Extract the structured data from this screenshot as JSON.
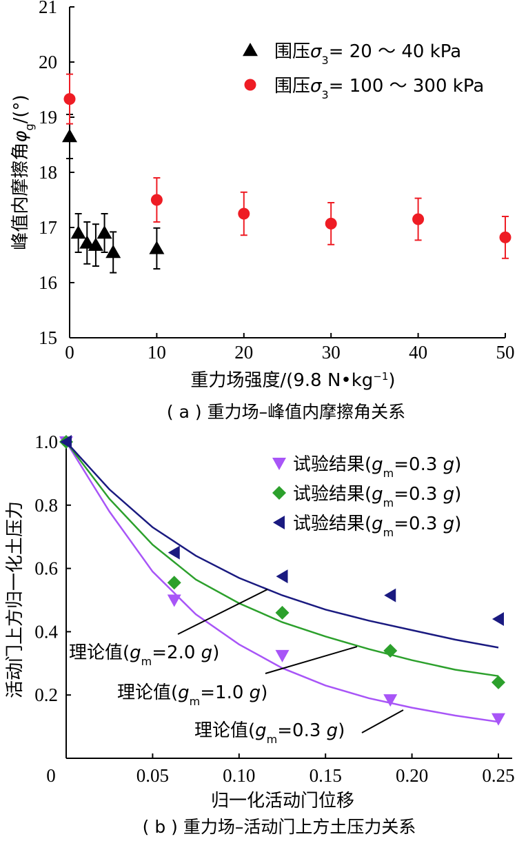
{
  "chart_data": [
    {
      "type": "scatter",
      "xlabel": "重力场强度/(9.8 N•kg⁻¹)",
      "ylabel": "峰值内摩擦角φg/(°)",
      "caption": "( a ) 重力场–峰值内摩擦角关系",
      "xlim": [
        0,
        50
      ],
      "ylim": [
        15,
        21
      ],
      "xticks": [
        "0",
        "10",
        "20",
        "30",
        "40",
        "50"
      ],
      "yticks": [
        "15",
        "16",
        "17",
        "18",
        "19",
        "20",
        "21"
      ],
      "legend_position": "top-right",
      "series": [
        {
          "name": "围压σ3= 20 ～ 40 kPa",
          "marker": "triangle",
          "color": "#000000",
          "x": [
            0,
            1,
            2,
            3,
            4,
            5,
            10
          ],
          "y": [
            18.65,
            16.9,
            16.72,
            16.68,
            16.9,
            16.55,
            16.62
          ],
          "err": [
            0.4,
            0.35,
            0.38,
            0.38,
            0.35,
            0.37,
            0.37
          ]
        },
        {
          "name": "围压σ3= 100 ～ 300 kPa",
          "marker": "circle",
          "color": "#ee1c24",
          "x": [
            0,
            10,
            20,
            30,
            40,
            50
          ],
          "y": [
            19.33,
            17.5,
            17.25,
            17.07,
            17.15,
            16.82
          ],
          "err": [
            0.45,
            0.4,
            0.39,
            0.38,
            0.38,
            0.38
          ]
        }
      ]
    },
    {
      "type": "line",
      "xlabel": "归一化活动门位移",
      "ylabel": "活动门上方归一化土压力",
      "caption": "( b ) 重力场–活动门上方土压力关系",
      "xlim": [
        0,
        0.25
      ],
      "ylim": [
        0,
        1.0
      ],
      "xticks": [
        "0",
        "0.05",
        "0.10",
        "0.15",
        "0.20",
        "0.25"
      ],
      "yticks": [
        "0.2",
        "0.4",
        "0.6",
        "0.8",
        "1.0"
      ],
      "legend_position": "top-right",
      "series": [
        {
          "name": "试验结果(gm=0.3 g)",
          "kind": "scatter",
          "marker": "triangle-down",
          "color": "#a855f7",
          "x": [
            0,
            0.0625,
            0.125,
            0.1875,
            0.25
          ],
          "y": [
            1.0,
            0.5,
            0.325,
            0.185,
            0.125
          ]
        },
        {
          "name": "试验结果(gm=0.3 g)",
          "kind": "scatter",
          "marker": "diamond",
          "color": "#2ca02c",
          "x": [
            0,
            0.0625,
            0.125,
            0.1875,
            0.25
          ],
          "y": [
            1.0,
            0.555,
            0.46,
            0.34,
            0.24
          ]
        },
        {
          "name": "试验结果(gm=0.3 g)",
          "kind": "scatter",
          "marker": "triangle-left",
          "color": "#1a1a80",
          "x": [
            0,
            0.0625,
            0.125,
            0.1875,
            0.25
          ],
          "y": [
            1.0,
            0.65,
            0.575,
            0.515,
            0.44
          ]
        },
        {
          "name": "理论值(gm=0.3 g)",
          "kind": "curve",
          "color": "#a855f7",
          "x": [
            0,
            0.025,
            0.05,
            0.075,
            0.1,
            0.125,
            0.15,
            0.175,
            0.2,
            0.225,
            0.25
          ],
          "y": [
            1.0,
            0.78,
            0.59,
            0.455,
            0.36,
            0.285,
            0.23,
            0.19,
            0.16,
            0.135,
            0.115
          ]
        },
        {
          "name": "理论值(gm=1.0 g)",
          "kind": "curve",
          "color": "#2ca02c",
          "x": [
            0,
            0.025,
            0.05,
            0.075,
            0.1,
            0.125,
            0.15,
            0.175,
            0.2,
            0.225,
            0.25
          ],
          "y": [
            1.0,
            0.82,
            0.675,
            0.565,
            0.49,
            0.43,
            0.385,
            0.345,
            0.31,
            0.28,
            0.26
          ]
        },
        {
          "name": "理论值(gm=2.0 g)",
          "kind": "curve",
          "color": "#1a1a80",
          "x": [
            0,
            0.025,
            0.05,
            0.075,
            0.1,
            0.125,
            0.15,
            0.175,
            0.2,
            0.225,
            0.25
          ],
          "y": [
            1.0,
            0.85,
            0.73,
            0.64,
            0.57,
            0.515,
            0.47,
            0.435,
            0.405,
            0.375,
            0.35
          ]
        }
      ],
      "annotations": [
        {
          "text": "理论值(gm=2.0 g)",
          "target": 0.1
        },
        {
          "text": "理论值(gm=1.0 g)",
          "target": 0.17
        },
        {
          "text": "理论值(gm=0.3 g)",
          "target": 0.2
        }
      ]
    }
  ]
}
